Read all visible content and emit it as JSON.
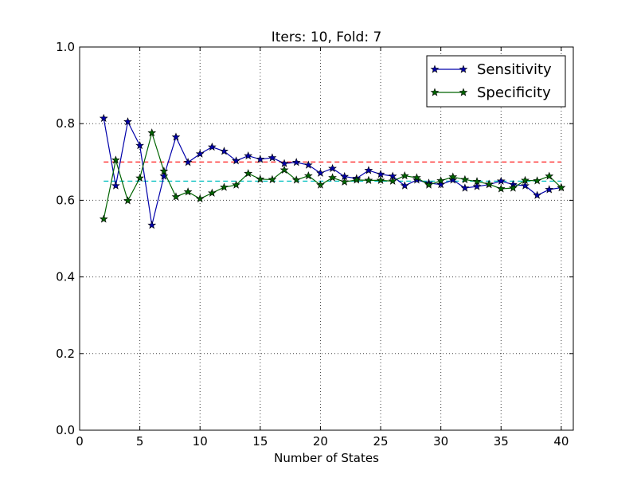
{
  "chart_data": {
    "type": "line",
    "title": "Iters: 10, Fold: 7",
    "xlabel": "Number of States",
    "ylabel": "",
    "xlim": [
      0,
      41
    ],
    "ylim": [
      0.0,
      1.0
    ],
    "xticks": [
      "0",
      "5",
      "10",
      "15",
      "20",
      "25",
      "30",
      "35",
      "40"
    ],
    "yticks": [
      "0.0",
      "0.2",
      "0.4",
      "0.6",
      "0.8",
      "1.0"
    ],
    "grid": true,
    "legend_position": "top-right",
    "x": [
      2,
      3,
      4,
      5,
      6,
      7,
      8,
      9,
      10,
      11,
      12,
      13,
      14,
      15,
      16,
      17,
      18,
      19,
      20,
      21,
      22,
      23,
      24,
      25,
      26,
      27,
      28,
      29,
      30,
      31,
      32,
      33,
      34,
      35,
      36,
      37,
      38,
      39,
      40
    ],
    "series": [
      {
        "name": "Sensitivity",
        "color": "#0000aa",
        "marker": "star",
        "values": [
          0.814,
          0.638,
          0.805,
          0.743,
          0.535,
          0.663,
          0.765,
          0.699,
          0.721,
          0.739,
          0.728,
          0.703,
          0.716,
          0.707,
          0.711,
          0.696,
          0.699,
          0.692,
          0.671,
          0.683,
          0.662,
          0.657,
          0.678,
          0.668,
          0.663,
          0.638,
          0.653,
          0.645,
          0.641,
          0.653,
          0.632,
          0.636,
          0.641,
          0.65,
          0.641,
          0.638,
          0.613,
          0.628,
          0.633
        ]
      },
      {
        "name": "Specificity",
        "color": "#006400",
        "marker": "star",
        "values": [
          0.551,
          0.705,
          0.599,
          0.658,
          0.776,
          0.676,
          0.609,
          0.622,
          0.604,
          0.619,
          0.634,
          0.64,
          0.67,
          0.655,
          0.654,
          0.679,
          0.653,
          0.664,
          0.64,
          0.659,
          0.648,
          0.653,
          0.652,
          0.652,
          0.65,
          0.664,
          0.659,
          0.64,
          0.651,
          0.661,
          0.654,
          0.649,
          0.642,
          0.63,
          0.632,
          0.652,
          0.651,
          0.663,
          0.633
        ]
      }
    ],
    "reference_lines": [
      {
        "y": 0.7,
        "color": "#ff0000",
        "xrange": [
          2,
          40
        ]
      },
      {
        "y": 0.65,
        "color": "#00bfbf",
        "xrange": [
          2,
          40
        ]
      }
    ]
  }
}
